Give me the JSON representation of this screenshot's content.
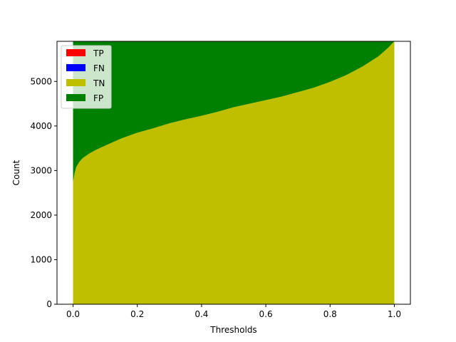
{
  "chart_data": {
    "type": "area",
    "stacked": true,
    "title": "",
    "xlabel": "Thresholds",
    "ylabel": "Count",
    "xlim": [
      -0.05,
      1.05
    ],
    "ylim": [
      0,
      5900
    ],
    "xticks": [
      "0.0",
      "0.2",
      "0.4",
      "0.6",
      "0.8",
      "1.0"
    ],
    "xtick_values": [
      0.0,
      0.2,
      0.4,
      0.6,
      0.8,
      1.0
    ],
    "yticks": [
      "0",
      "1000",
      "2000",
      "3000",
      "4000",
      "5000"
    ],
    "ytick_values": [
      0,
      1000,
      2000,
      3000,
      4000,
      5000
    ],
    "grid": false,
    "legend_position": "top-left",
    "total": 5900,
    "x": [
      0.0,
      0.005,
      0.01,
      0.02,
      0.03,
      0.05,
      0.07,
      0.1,
      0.15,
      0.2,
      0.25,
      0.3,
      0.35,
      0.4,
      0.45,
      0.5,
      0.55,
      0.6,
      0.65,
      0.7,
      0.75,
      0.8,
      0.85,
      0.9,
      0.95,
      0.98,
      1.0
    ],
    "series": [
      {
        "name": "TP",
        "color": "#ff0000",
        "values": [
          0,
          0,
          0,
          0,
          0,
          0,
          0,
          0,
          0,
          0,
          0,
          0,
          0,
          0,
          0,
          0,
          0,
          0,
          0,
          0,
          0,
          0,
          0,
          0,
          0,
          0,
          0
        ]
      },
      {
        "name": "FN",
        "color": "#0000ff",
        "values": [
          0,
          0,
          0,
          0,
          0,
          0,
          0,
          0,
          0,
          0,
          0,
          0,
          0,
          0,
          0,
          0,
          0,
          0,
          0,
          0,
          0,
          0,
          0,
          0,
          0,
          0,
          0
        ]
      },
      {
        "name": "TN",
        "color": "#bfbf00",
        "values": [
          2750,
          2950,
          3080,
          3200,
          3280,
          3380,
          3460,
          3560,
          3720,
          3850,
          3950,
          4060,
          4150,
          4230,
          4320,
          4420,
          4500,
          4580,
          4660,
          4760,
          4860,
          4990,
          5140,
          5330,
          5560,
          5750,
          5900
        ]
      },
      {
        "name": "FP",
        "color": "#008000",
        "values": [
          3150,
          2950,
          2820,
          2700,
          2620,
          2520,
          2440,
          2340,
          2180,
          2050,
          1950,
          1840,
          1750,
          1670,
          1580,
          1480,
          1400,
          1320,
          1240,
          1140,
          1040,
          910,
          760,
          570,
          340,
          150,
          0
        ]
      }
    ]
  }
}
